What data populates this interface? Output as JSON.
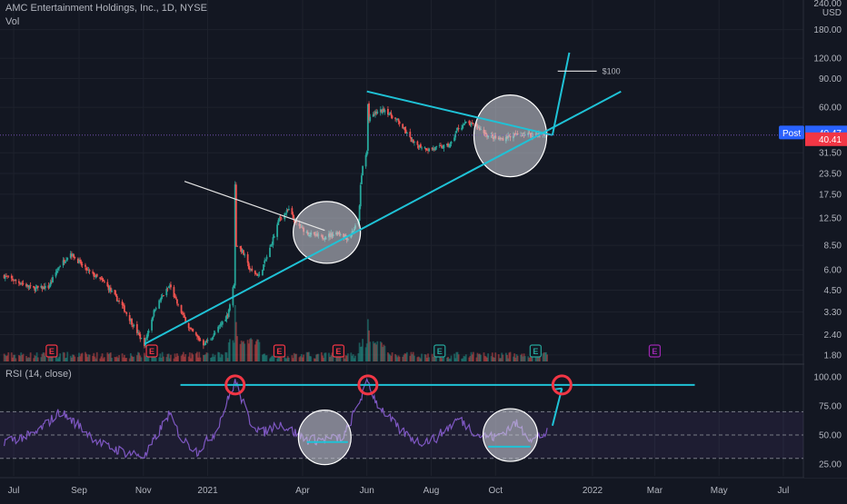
{
  "header": {
    "symbol_title": "AMC Entertainment Holdings, Inc., 1D, NYSE",
    "volume_label": "Vol",
    "indicator_label": "RSI (14, close)",
    "currency": "USD"
  },
  "colors": {
    "background": "#131722",
    "up": "#26a69a",
    "down": "#ef5350",
    "trendline": "#1fc2d6",
    "annotation_line": "#e6e6e6",
    "rsi_line": "#7e57c2",
    "rsi_band": "#7e57c2",
    "circle_fill": "#d1d4dc",
    "rsi_marker": "#f23645",
    "post_badge": "#2962ff",
    "last_price_badge": "#f23645"
  },
  "icons": {
    "earnings_marker": "earnings-e-icon"
  },
  "price_axis": {
    "scale": "log",
    "ticks": [
      "240.00",
      "180.00",
      "120.00",
      "90.00",
      "60.00",
      "40.47",
      "40.41",
      "31.50",
      "23.50",
      "17.50",
      "12.50",
      "8.50",
      "6.00",
      "4.50",
      "3.30",
      "2.40",
      "1.80"
    ],
    "grid_ticks": [
      180,
      120,
      90,
      60,
      31.5,
      23.5,
      17.5,
      12.5,
      8.5,
      6,
      4.5,
      3.3,
      2.4,
      1.8
    ],
    "post_label": "Post",
    "post_price": "40.47",
    "last_price": "40.41"
  },
  "rsi_axis": {
    "ticks": [
      "100.00",
      "75.00",
      "50.00",
      "25.00"
    ],
    "band": [
      30,
      70
    ]
  },
  "time_axis": {
    "labels": [
      "Jul",
      "Sep",
      "Nov",
      "2021",
      "Apr",
      "Jun",
      "Aug",
      "Oct",
      "2022",
      "Mar",
      "May",
      "Jul"
    ]
  },
  "annotations": {
    "target_label": "$100"
  },
  "chart_data": {
    "type": "candlestick",
    "title": "AMC Entertainment Holdings, Inc., 1D, NYSE",
    "x_unit": "date",
    "y_scale": "log",
    "ylim": [
      1.6,
      260
    ],
    "price_path": [
      [
        "2020-06-22",
        5.5
      ],
      [
        "2020-07-01",
        5.2
      ],
      [
        "2020-07-20",
        4.6
      ],
      [
        "2020-08-03",
        4.7
      ],
      [
        "2020-08-13",
        6.3
      ],
      [
        "2020-08-24",
        7.6
      ],
      [
        "2020-09-08",
        6.0
      ],
      [
        "2020-09-25",
        5.0
      ],
      [
        "2020-10-12",
        3.6
      ],
      [
        "2020-10-29",
        2.3
      ],
      [
        "2020-11-02",
        2.1
      ],
      [
        "2020-11-12",
        3.5
      ],
      [
        "2020-11-26",
        4.8
      ],
      [
        "2020-12-04",
        3.6
      ],
      [
        "2020-12-15",
        2.6
      ],
      [
        "2020-12-28",
        2.1
      ],
      [
        "2021-01-05",
        2.3
      ],
      [
        "2021-01-20",
        3.2
      ],
      [
        "2021-01-26",
        4.96
      ],
      [
        "2021-01-27",
        19.9
      ],
      [
        "2021-01-28",
        8.6
      ],
      [
        "2021-02-03",
        7.8
      ],
      [
        "2021-02-10",
        6.0
      ],
      [
        "2021-02-19",
        5.5
      ],
      [
        "2021-03-01",
        8.1
      ],
      [
        "2021-03-10",
        12.4
      ],
      [
        "2021-03-19",
        14.0
      ],
      [
        "2021-03-26",
        11.5
      ],
      [
        "2021-04-07",
        10.0
      ],
      [
        "2021-04-19",
        9.5
      ],
      [
        "2021-05-05",
        10.2
      ],
      [
        "2021-05-14",
        9.4
      ],
      [
        "2021-05-24",
        11.8
      ],
      [
        "2021-05-26",
        19.5
      ],
      [
        "2021-05-28",
        26.1
      ],
      [
        "2021-06-01",
        32.0
      ],
      [
        "2021-06-02",
        62.5
      ],
      [
        "2021-06-03",
        50.0
      ],
      [
        "2021-06-08",
        55.0
      ],
      [
        "2021-06-18",
        58.0
      ],
      [
        "2021-07-02",
        48.0
      ],
      [
        "2021-07-15",
        36.0
      ],
      [
        "2021-07-30",
        33.0
      ],
      [
        "2021-08-09",
        34.0
      ],
      [
        "2021-08-19",
        35.0
      ],
      [
        "2021-08-26",
        44.0
      ],
      [
        "2021-09-03",
        48.0
      ],
      [
        "2021-09-13",
        46.0
      ],
      [
        "2021-09-24",
        40.0
      ],
      [
        "2021-10-05",
        38.0
      ],
      [
        "2021-10-15",
        40.0
      ],
      [
        "2021-10-29",
        41.0
      ],
      [
        "2021-11-10",
        41.0
      ],
      [
        "2021-11-19",
        40.41
      ]
    ],
    "volume_spikes": [
      [
        "2021-01-27",
        1.0
      ],
      [
        "2021-01-28",
        0.7
      ],
      [
        "2021-01-29",
        0.45
      ],
      [
        "2021-06-02",
        0.75
      ],
      [
        "2021-06-03",
        0.55
      ],
      [
        "2021-05-28",
        0.4
      ],
      [
        "2021-06-04",
        0.35
      ],
      [
        "2021-06-10",
        0.3
      ]
    ],
    "rsi_path": [
      [
        "2020-06-22",
        45
      ],
      [
        "2020-07-20",
        50
      ],
      [
        "2020-08-14",
        70
      ],
      [
        "2020-09-01",
        58
      ],
      [
        "2020-09-22",
        42
      ],
      [
        "2020-10-15",
        35
      ],
      [
        "2020-11-03",
        32
      ],
      [
        "2020-11-25",
        68
      ],
      [
        "2020-12-08",
        46
      ],
      [
        "2020-12-22",
        36
      ],
      [
        "2021-01-08",
        52
      ],
      [
        "2021-01-27",
        96
      ],
      [
        "2021-02-10",
        62
      ],
      [
        "2021-02-22",
        52
      ],
      [
        "2021-03-10",
        60
      ],
      [
        "2021-04-05",
        46
      ],
      [
        "2021-04-22",
        46
      ],
      [
        "2021-05-10",
        48
      ],
      [
        "2021-06-02",
        96
      ],
      [
        "2021-06-10",
        78
      ],
      [
        "2021-07-01",
        55
      ],
      [
        "2021-07-20",
        44
      ],
      [
        "2021-08-05",
        47
      ],
      [
        "2021-08-27",
        64
      ],
      [
        "2021-09-15",
        50
      ],
      [
        "2021-10-01",
        48
      ],
      [
        "2021-10-20",
        60
      ],
      [
        "2021-11-05",
        46
      ],
      [
        "2021-11-19",
        52
      ]
    ],
    "trendlines": [
      {
        "name": "rising-support",
        "from": [
          "2020-11-02",
          2.1
        ],
        "to": [
          "2022-01-28",
          75.0
        ]
      },
      {
        "name": "upper-triangle-top",
        "from": [
          "2021-06-01",
          75.0
        ],
        "to": [
          "2021-11-24",
          40.41
        ]
      },
      {
        "name": "first-triangle-top",
        "from": [
          "2020-12-10",
          21.0
        ],
        "to": [
          "2021-04-22",
          10.5
        ]
      },
      {
        "name": "breakout-projection",
        "from": [
          "2021-11-24",
          40.41
        ],
        "to": [
          "2021-12-10",
          130.0
        ]
      },
      {
        "name": "target-line",
        "from": [
          "2021-11-29",
          100.0
        ],
        "to": [
          "2022-01-05",
          100.0
        ]
      }
    ],
    "rsi_annotations": {
      "resistance": [
        [
          "2021-01-01",
          93
        ],
        [
          "2022-04-08",
          93
        ]
      ],
      "projection": [
        [
          "2021-11-24",
          58
        ],
        [
          "2021-12-03",
          90
        ]
      ]
    },
    "earnings_dates": [
      "2020-08-06",
      "2020-11-09",
      "2021-03-10",
      "2021-05-05",
      "2021-08-09",
      "2021-11-08",
      "2022-03-01"
    ],
    "rsi_ylim": [
      15,
      110
    ]
  }
}
